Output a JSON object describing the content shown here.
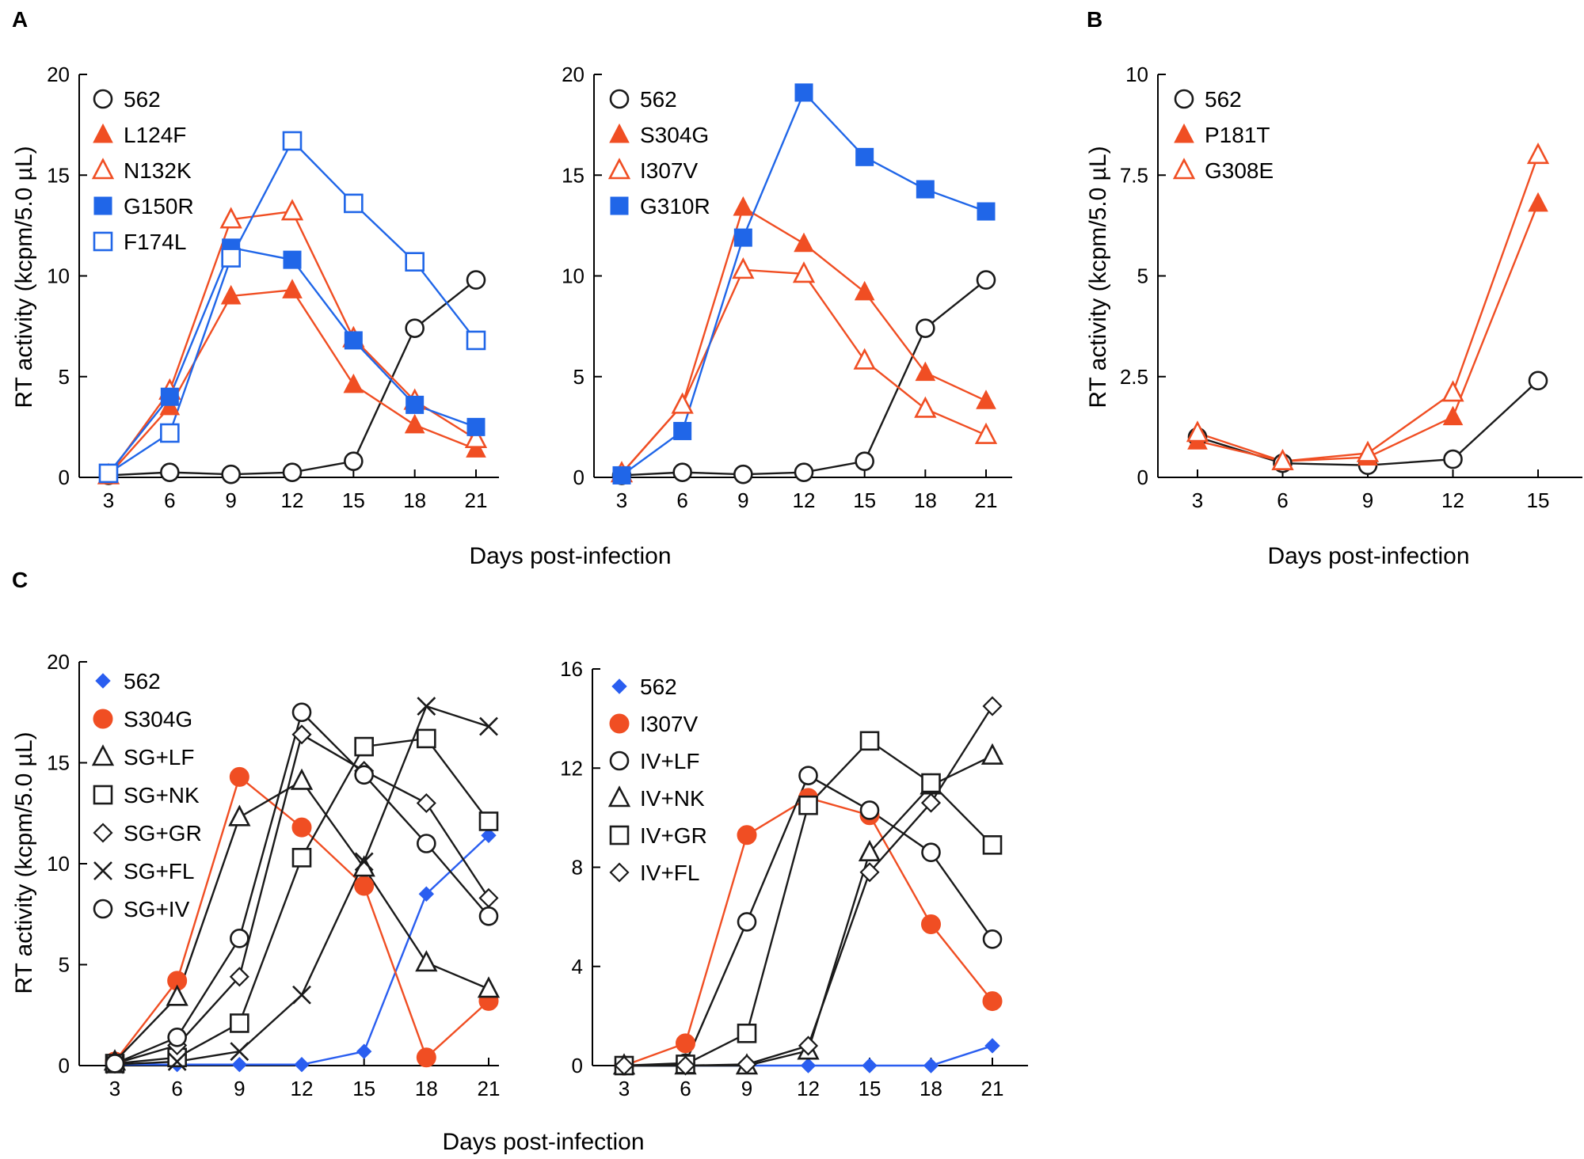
{
  "colors": {
    "black": "#1a1a1a",
    "orange": "#f04e23",
    "blue": "#2066e8",
    "blue_diamond": "#2a5ef0"
  },
  "chart_data": [
    {
      "id": "A1",
      "panel_letter": "A",
      "type": "line",
      "xlabel": "",
      "ylabel": "RT activity (kcpm/5.0 µL)",
      "x": [
        3,
        6,
        9,
        12,
        15,
        18,
        21
      ],
      "xticks": [
        "3",
        "6",
        "9",
        "12",
        "15",
        "18",
        "21"
      ],
      "ylim": [
        0,
        20
      ],
      "yticks": [
        "0",
        "5",
        "10",
        "15",
        "20"
      ],
      "series": [
        {
          "name": "562",
          "marker": "circle-open",
          "color": "black",
          "values": [
            0.1,
            0.25,
            0.15,
            0.25,
            0.8,
            7.4,
            9.8
          ]
        },
        {
          "name": "L124F",
          "marker": "triangle-filled",
          "color": "orange",
          "values": [
            0.1,
            3.5,
            9.0,
            9.3,
            4.6,
            2.6,
            1.4
          ]
        },
        {
          "name": "N132K",
          "marker": "triangle-open",
          "color": "orange",
          "values": [
            0.1,
            4.3,
            12.8,
            13.2,
            6.9,
            3.8,
            1.9
          ]
        },
        {
          "name": "G150R",
          "marker": "square-filled",
          "color": "blue",
          "values": [
            0.2,
            4.0,
            11.4,
            10.8,
            6.8,
            3.6,
            2.5
          ]
        },
        {
          "name": "F174L",
          "marker": "square-open",
          "color": "blue",
          "values": [
            0.2,
            2.2,
            10.9,
            16.7,
            13.6,
            10.7,
            6.8
          ]
        }
      ]
    },
    {
      "id": "A2",
      "panel_letter": "",
      "type": "line",
      "xlabel": "Days post-infection",
      "ylabel": "",
      "x": [
        3,
        6,
        9,
        12,
        15,
        18,
        21
      ],
      "xticks": [
        "3",
        "6",
        "9",
        "12",
        "15",
        "18",
        "21"
      ],
      "ylim": [
        0,
        20
      ],
      "yticks": [
        "0",
        "5",
        "10",
        "15",
        "20"
      ],
      "series": [
        {
          "name": "562",
          "marker": "circle-open",
          "color": "black",
          "values": [
            0.1,
            0.25,
            0.15,
            0.25,
            0.8,
            7.4,
            9.8
          ]
        },
        {
          "name": "S304G",
          "marker": "triangle-filled",
          "color": "orange",
          "values": [
            0.2,
            3.6,
            13.4,
            11.6,
            9.2,
            5.2,
            3.8
          ]
        },
        {
          "name": "I307V",
          "marker": "triangle-open",
          "color": "orange",
          "values": [
            0.2,
            3.6,
            10.3,
            10.1,
            5.8,
            3.4,
            2.1
          ]
        },
        {
          "name": "G310R",
          "marker": "square-filled",
          "color": "blue",
          "values": [
            0.1,
            2.3,
            11.9,
            19.1,
            15.9,
            14.3,
            13.2
          ]
        }
      ]
    },
    {
      "id": "B",
      "panel_letter": "B",
      "type": "line",
      "xlabel": "Days post-infection",
      "ylabel": "RT activity (kcpm/5.0 µL)",
      "x": [
        3,
        6,
        9,
        12,
        15
      ],
      "xticks": [
        "3",
        "6",
        "9",
        "12",
        "15"
      ],
      "ylim": [
        0,
        10
      ],
      "yticks": [
        "0",
        "2.5",
        "5",
        "7.5",
        "10"
      ],
      "series": [
        {
          "name": "562",
          "marker": "circle-open",
          "color": "black",
          "values": [
            1.0,
            0.35,
            0.3,
            0.45,
            2.4
          ]
        },
        {
          "name": "P181T",
          "marker": "triangle-filled",
          "color": "orange",
          "values": [
            0.9,
            0.4,
            0.5,
            1.5,
            6.8
          ]
        },
        {
          "name": "G308E",
          "marker": "triangle-open",
          "color": "orange",
          "values": [
            1.1,
            0.4,
            0.6,
            2.1,
            8.0
          ]
        }
      ]
    },
    {
      "id": "C1",
      "panel_letter": "C",
      "type": "line",
      "xlabel": "",
      "ylabel": "RT activity (kcpm/5.0 µL)",
      "x": [
        3,
        6,
        9,
        12,
        15,
        18,
        21
      ],
      "xticks": [
        "3",
        "6",
        "9",
        "12",
        "15",
        "18",
        "21"
      ],
      "ylim": [
        0,
        20
      ],
      "yticks": [
        "0",
        "5",
        "10",
        "15",
        "20"
      ],
      "series": [
        {
          "name": "562",
          "marker": "diamond-filled",
          "color": "blue_diamond",
          "values": [
            0.05,
            0.05,
            0.05,
            0.05,
            0.7,
            8.5,
            11.4
          ]
        },
        {
          "name": "S304G",
          "marker": "circle-filled",
          "color": "orange",
          "values": [
            0.2,
            4.2,
            14.3,
            11.8,
            8.9,
            0.4,
            3.2
          ]
        },
        {
          "name": "SG+LF",
          "marker": "triangle-open",
          "color": "black",
          "values": [
            0.2,
            3.4,
            12.3,
            14.1,
            9.8,
            5.1,
            3.8
          ]
        },
        {
          "name": "SG+NK",
          "marker": "square-open",
          "color": "black",
          "values": [
            0.1,
            0.4,
            2.1,
            10.3,
            15.8,
            16.2,
            12.1
          ]
        },
        {
          "name": "SG+GR",
          "marker": "diamond-open",
          "color": "black",
          "values": [
            0.1,
            1.0,
            4.4,
            16.4,
            14.6,
            13.0,
            8.3
          ]
        },
        {
          "name": "SG+FL",
          "marker": "x",
          "color": "black",
          "values": [
            0.05,
            0.2,
            0.7,
            3.5,
            10.1,
            17.8,
            16.8
          ]
        },
        {
          "name": "SG+IV",
          "marker": "circle-open",
          "color": "black",
          "values": [
            0.1,
            1.4,
            6.3,
            17.5,
            14.4,
            11.0,
            7.4
          ]
        }
      ]
    },
    {
      "id": "C2",
      "panel_letter": "",
      "type": "line",
      "xlabel": "Days post-infection",
      "ylabel": "",
      "x": [
        3,
        6,
        9,
        12,
        15,
        18,
        21
      ],
      "xticks": [
        "3",
        "6",
        "9",
        "12",
        "15",
        "18",
        "21"
      ],
      "ylim": [
        0,
        16
      ],
      "yticks": [
        "0",
        "4",
        "8",
        "12",
        "16"
      ],
      "series": [
        {
          "name": "562",
          "marker": "diamond-filled",
          "color": "blue_diamond",
          "values": [
            0.0,
            0.0,
            0.0,
            0.0,
            0.0,
            0.0,
            0.8
          ]
        },
        {
          "name": "I307V",
          "marker": "circle-filled",
          "color": "orange",
          "values": [
            0.0,
            0.9,
            9.3,
            10.8,
            10.1,
            5.7,
            2.6
          ]
        },
        {
          "name": "IV+LF",
          "marker": "circle-open",
          "color": "black",
          "values": [
            0.0,
            0.1,
            5.8,
            11.7,
            10.3,
            8.6,
            5.1
          ]
        },
        {
          "name": "IV+NK",
          "marker": "triangle-open",
          "color": "black",
          "values": [
            0.0,
            0.0,
            0.0,
            0.6,
            8.6,
            11.3,
            12.5
          ]
        },
        {
          "name": "IV+GR",
          "marker": "square-open",
          "color": "black",
          "values": [
            0.0,
            0.05,
            1.3,
            10.5,
            13.1,
            11.4,
            8.9
          ]
        },
        {
          "name": "IV+FL",
          "marker": "diamond-open",
          "color": "black",
          "values": [
            0.0,
            0.0,
            0.05,
            0.8,
            7.8,
            10.6,
            14.5
          ]
        }
      ]
    }
  ]
}
